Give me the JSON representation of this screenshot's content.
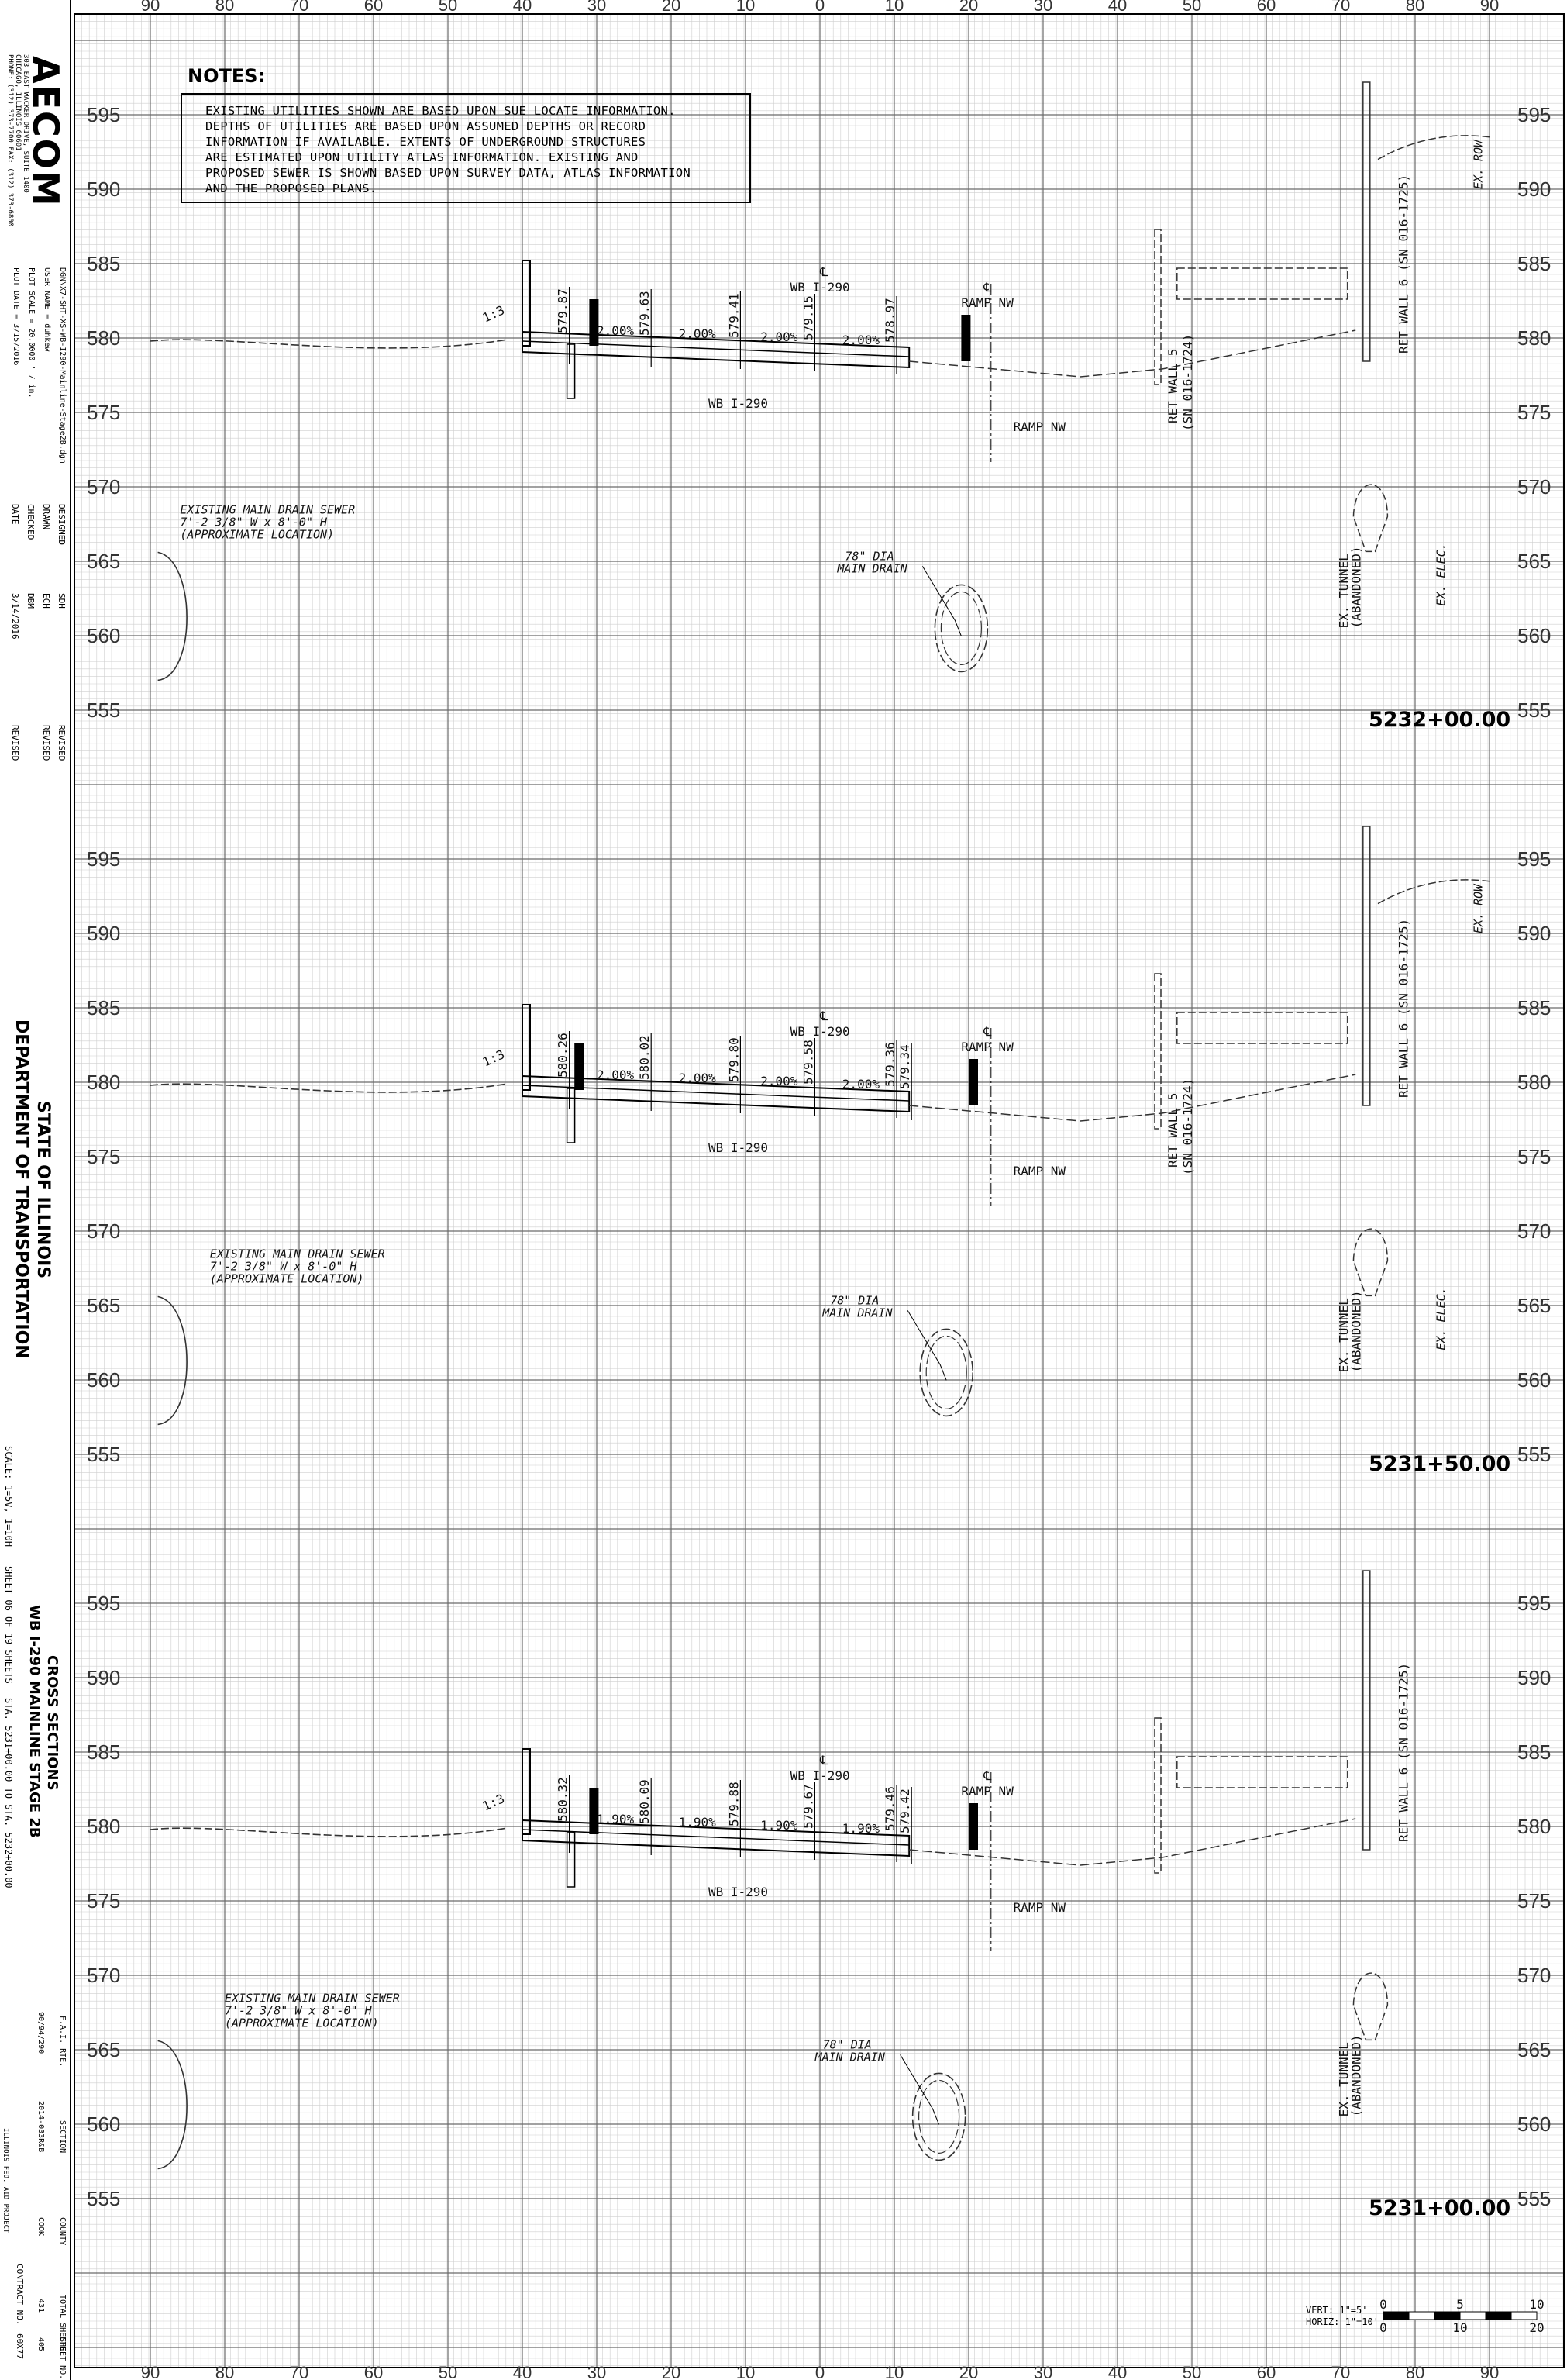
{
  "title_block": {
    "logo": "AECOM",
    "address_lines": [
      "303 EAST WACKER DRIVE, SUITE 1400",
      "CHICAGO, ILLINOIS 60601",
      "PHONE: (312) 373-7700 FAX: (312) 373-6800"
    ],
    "file_name": "DGN\\X7-SHT-XS-WB-I290-Mainline-Stage2B.dgn",
    "user_name": "USER NAME = duhkew",
    "plot_scale": "PLOT SCALE = 20.0000 ' / in.",
    "plot_date": "PLOT DATE = 3/15/2016",
    "designed_label": "DESIGNED",
    "designed_by": "SDH",
    "drawn_label": "DRAWN",
    "drawn_by": "ECH",
    "checked_label": "CHECKED",
    "checked_by": "DBM",
    "date_label": "DATE",
    "date_value": "3/14/2016",
    "revised_label": "REVISED",
    "agency_line1": "STATE OF ILLINOIS",
    "agency_line2": "DEPARTMENT OF TRANSPORTATION",
    "scale_text": "SCALE: 1=5V, 1=10H",
    "sheet_text": "SHEET 06 OF 19 SHEETS",
    "station_range": "STA. 5231+00.00 TO STA. 5232+00.00",
    "drawing_title1": "CROSS SECTIONS",
    "drawing_title2": "WB I-290 MAINLINE STAGE 2B",
    "far_rte_label": "F.A.I. RTE.",
    "far_rte_value": "90/94/290",
    "section_label": "SECTION",
    "section_value": "2014-033R&B",
    "county_label": "COUNTY",
    "county_value": "COOK",
    "total_sheets_label": "TOTAL SHEETS",
    "total_sheets_value": "431",
    "sheet_no_label": "SHEET NO.",
    "sheet_no_value": "405",
    "contract_label": "CONTRACT NO.",
    "contract_value": "60X77",
    "project_label": "ILLINOIS FED. AID PROJECT"
  },
  "notes": {
    "title": "NOTES:",
    "lines": [
      "EXISTING UTILITIES SHOWN ARE BASED UPON SUE LOCATE INFORMATION.",
      "DEPTHS OF UTILITIES ARE BASED UPON ASSUMED DEPTHS OR RECORD",
      "INFORMATION IF AVAILABLE.  EXTENTS OF UNDERGROUND STRUCTURES",
      "ARE ESTIMATED UPON UTILITY ATLAS INFORMATION.  EXISTING AND",
      "PROPOSED SEWER IS SHOWN BASED UPON SURVEY DATA, ATLAS INFORMATION",
      "AND THE PROPOSED PLANS."
    ]
  },
  "offset_ticks": [
    "90",
    "80",
    "70",
    "60",
    "50",
    "40",
    "30",
    "20",
    "10",
    "0",
    "10",
    "20",
    "30",
    "40",
    "50",
    "60",
    "70",
    "80",
    "90"
  ],
  "sections": [
    {
      "station": "5232+00.00",
      "elevations": [
        "595",
        "590",
        "585",
        "580",
        "575",
        "570",
        "565",
        "560",
        "555"
      ],
      "spot_grades": [
        "579.87",
        "579.63",
        "579.41",
        "579.15",
        "578.97"
      ],
      "slopes": [
        "2.00%",
        "2.00%",
        "2.00%",
        "2.00%"
      ],
      "labels": {
        "wb_top": "WB I-290",
        "wb_bottom": "WB I-290",
        "ramp_top": "RAMP NW",
        "ramp_bottom": "RAMP NW",
        "cl": "℄",
        "slope_ratio": "1:3",
        "drain_sewer": [
          "EXISTING MAIN DRAIN SEWER",
          "7'-2 3/8\" W x 8'-0\" H",
          "(APPROXIMATE LOCATION)"
        ],
        "main_drain": [
          "78\" DIA",
          "MAIN DRAIN"
        ],
        "ret_wall_5": [
          "RET WALL 5",
          "(SN 016-1724)"
        ],
        "ret_wall_6": "RET WALL 6 (SN 016-1725)",
        "tunnel": [
          "EX. TUNNEL",
          "(ABANDONED)"
        ],
        "elec": "EX. ELEC.",
        "row": "EX. ROW"
      }
    },
    {
      "station": "5231+50.00",
      "elevations": [
        "595",
        "590",
        "585",
        "580",
        "575",
        "570",
        "565",
        "560",
        "555"
      ],
      "spot_grades": [
        "580.26",
        "580.02",
        "579.80",
        "579.58",
        "579.36",
        "579.34"
      ],
      "slopes": [
        "2.00%",
        "2.00%",
        "2.00%",
        "2.00%"
      ],
      "labels": {
        "wb_top": "WB I-290",
        "wb_bottom": "WB I-290",
        "ramp_top": "RAMP NW",
        "ramp_bottom": "RAMP NW",
        "cl": "℄",
        "slope_ratio": "1:3",
        "drain_sewer": [
          "EXISTING MAIN DRAIN SEWER",
          "7'-2 3/8\" W x 8'-0\" H",
          "(APPROXIMATE LOCATION)"
        ],
        "main_drain": [
          "78\" DIA",
          "MAIN DRAIN"
        ],
        "ret_wall_5": [
          "RET WALL 5",
          "(SN 016-1724)"
        ],
        "ret_wall_6": "RET WALL 6 (SN 016-1725)",
        "tunnel": [
          "EX. TUNNEL",
          "(ABANDONED)"
        ],
        "elec": "EX. ELEC.",
        "row": "EX. ROW"
      }
    },
    {
      "station": "5231+00.00",
      "elevations": [
        "595",
        "590",
        "585",
        "580",
        "575",
        "570",
        "565",
        "560",
        "555"
      ],
      "spot_grades": [
        "580.32",
        "580.09",
        "579.88",
        "579.67",
        "579.46",
        "579.42"
      ],
      "slopes": [
        "1.90%",
        "1.90%",
        "1.90%",
        "1.90%"
      ],
      "labels": {
        "wb_top": "WB I-290",
        "wb_bottom": "WB I-290",
        "ramp_top": "RAMP NW",
        "ramp_bottom": "RAMP NW",
        "cl": "℄",
        "slope_ratio": "1:3",
        "drain_sewer": [
          "EXISTING MAIN DRAIN SEWER",
          "7'-2 3/8\" W x 8'-0\" H",
          "(APPROXIMATE LOCATION)"
        ],
        "main_drain": [
          "78\" DIA",
          "MAIN DRAIN"
        ],
        "ret_wall_6": "RET WALL 6 (SN 016-1725)",
        "tunnel": [
          "EX. TUNNEL",
          "(ABANDONED)"
        ]
      }
    }
  ],
  "scale_bar": {
    "vert": "VERT: 1\"=5'",
    "horiz": "HORIZ: 1\"=10'",
    "vert_ticks": [
      "0",
      "5",
      "10"
    ],
    "horiz_ticks": [
      "0",
      "10",
      "20"
    ]
  }
}
